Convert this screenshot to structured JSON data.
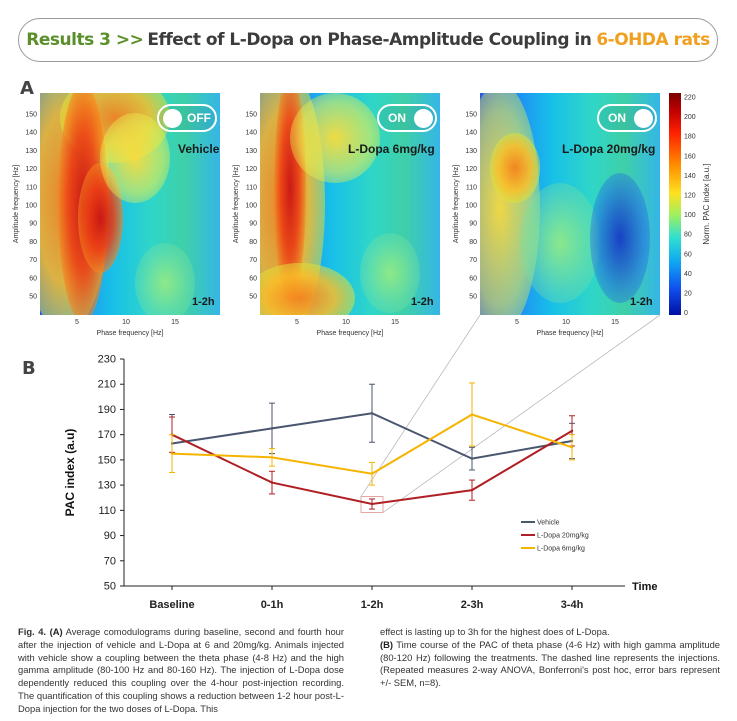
{
  "banner": {
    "prefix": "Results 3 >>",
    "main": "Effect of L-Dopa on Phase-Amplitude Coupling in",
    "suffix": "6-OHDA rats"
  },
  "panel_a": {
    "letter": "A",
    "maps": [
      {
        "toggle": "OFF",
        "condition": "Vehicle",
        "time": "1-2h"
      },
      {
        "toggle": "ON",
        "condition": "L-Dopa 6mg/kg",
        "time": "1-2h"
      },
      {
        "toggle": "ON",
        "condition": "L-Dopa 20mg/kg",
        "time": "1-2h"
      }
    ],
    "ylabel": "Amplitude frequency [Hz]",
    "xlabel": "Phase frequency [Hz]",
    "yticks": [
      "150",
      "140",
      "130",
      "120",
      "110",
      "100",
      "90",
      "80",
      "70",
      "60",
      "50"
    ],
    "xticks": [
      "5",
      "10",
      "15"
    ],
    "colorbar": {
      "label": "Norm. PAC index [a.u.]",
      "ticks": [
        "220",
        "200",
        "180",
        "160",
        "140",
        "120",
        "100",
        "80",
        "60",
        "40",
        "20",
        "0"
      ]
    }
  },
  "panel_b": {
    "letter": "B",
    "time_label": "Time"
  },
  "chart_data": [
    {
      "type": "line",
      "categories": [
        "Baseline",
        "0-1h",
        "1-2h",
        "2-3h",
        "3-4h"
      ],
      "ylabel": "PAC index (a.u)",
      "xlabel": "Time",
      "ylim": [
        50,
        230
      ],
      "yticks": [
        50,
        70,
        90,
        110,
        130,
        150,
        170,
        190,
        210,
        230
      ],
      "legend_position": "right",
      "series": [
        {
          "name": "Vehicle",
          "color": "#4a5670",
          "values": [
            163,
            175,
            187,
            151,
            165
          ],
          "errors": [
            23,
            20,
            23,
            9,
            14
          ]
        },
        {
          "name": "L-Dopa 20mg/kg",
          "color": "#b01f24",
          "values": [
            170,
            132,
            115,
            126,
            173
          ],
          "errors": [
            14,
            9,
            4,
            8,
            12
          ]
        },
        {
          "name": "L-Dopa 6mg/kg",
          "color": "#f5b400",
          "values": [
            155,
            152,
            139,
            186,
            160
          ],
          "errors": [
            15,
            7,
            9,
            25,
            10
          ]
        }
      ]
    }
  ],
  "caption": {
    "fig_label": "Fig. 4.",
    "a_label": "(A)",
    "left_text": "Average comodulograms during baseline, second and fourth hour after the injection of vehicle and L-Dopa at 6 and 20mg/kg. Animals injected with vehicle show a coupling between the theta phase (4-8 Hz) and the high gamma amplitude (80-100 Hz and 80-160 Hz). The injection of L-Dopa dose dependently reduced this coupling over the 4-hour post-injection recording. The quantification of this coupling shows a reduction between 1-2 hour post-L-Dopa injection for the two doses of L-Dopa. This",
    "right_text_1": "effect is lasting up to 3h for the highest does of L-Dopa.",
    "b_label": "(B)",
    "right_text_2": "Time course of the PAC of theta phase (4-6 Hz) with high gamma amplitude (80-120 Hz) following the treatments. The dashed line represents the injections. (Repeated measures 2-way ANOVA, Bonferroni's post hoc, error bars represent +/- SEM, n=8)."
  }
}
